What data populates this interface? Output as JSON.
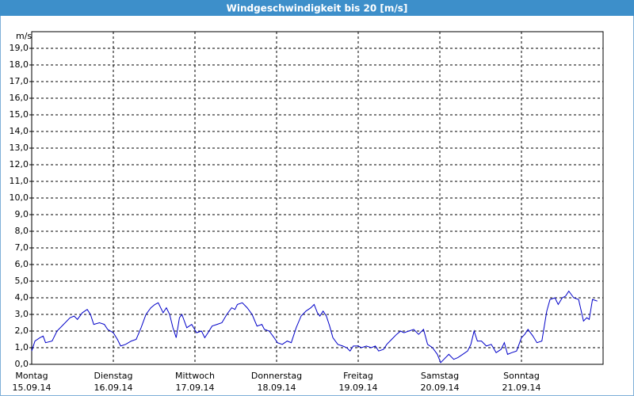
{
  "chart_data": {
    "type": "line",
    "title": "Windgeschwindigkeit bis 20 [m/s]",
    "y_label": "m/s",
    "xlim": [
      0,
      7
    ],
    "xticks": [
      {
        "value": 0,
        "label": "Montag",
        "date": "15.09.14"
      },
      {
        "value": 1,
        "label": "Dienstag",
        "date": "16.09.14"
      },
      {
        "value": 2,
        "label": "Mittwoch",
        "date": "17.09.14"
      },
      {
        "value": 3,
        "label": "Donnerstag",
        "date": "18.09.14"
      },
      {
        "value": 4,
        "label": "Freitag",
        "date": "19.09.14"
      },
      {
        "value": 5,
        "label": "Samstag",
        "date": "20.09.14"
      },
      {
        "value": 6,
        "label": "Sonntag",
        "date": "21.09.14"
      }
    ],
    "ylim": [
      0,
      20
    ],
    "yticks": [
      {
        "value": 0,
        "label": "0,0"
      },
      {
        "value": 1,
        "label": "1,0"
      },
      {
        "value": 2,
        "label": "2,0"
      },
      {
        "value": 3,
        "label": "3,0"
      },
      {
        "value": 4,
        "label": "4,0"
      },
      {
        "value": 5,
        "label": "5,0"
      },
      {
        "value": 6,
        "label": "6,0"
      },
      {
        "value": 7,
        "label": "7,0"
      },
      {
        "value": 8,
        "label": "8,0"
      },
      {
        "value": 9,
        "label": "9,0"
      },
      {
        "value": 10,
        "label": "10,0"
      },
      {
        "value": 11,
        "label": "11,0"
      },
      {
        "value": 12,
        "label": "12,0"
      },
      {
        "value": 13,
        "label": "13,0"
      },
      {
        "value": 14,
        "label": "14,0"
      },
      {
        "value": 15,
        "label": "15,0"
      },
      {
        "value": 16,
        "label": "16,0"
      },
      {
        "value": 17,
        "label": "17,0"
      },
      {
        "value": 18,
        "label": "18,0"
      },
      {
        "value": 19,
        "label": "19,0"
      }
    ],
    "grid": true,
    "x": [
      0,
      0.04,
      0.1,
      0.14,
      0.17,
      0.25,
      0.31,
      0.39,
      0.47,
      0.52,
      0.56,
      0.62,
      0.68,
      0.72,
      0.76,
      0.83,
      0.89,
      0.93,
      1.0,
      1.05,
      1.09,
      1.15,
      1.22,
      1.28,
      1.34,
      1.4,
      1.46,
      1.51,
      1.55,
      1.61,
      1.65,
      1.69,
      1.73,
      1.77,
      1.81,
      1.84,
      1.9,
      1.96,
      2.02,
      2.08,
      2.12,
      2.16,
      2.21,
      2.27,
      2.33,
      2.39,
      2.45,
      2.49,
      2.52,
      2.58,
      2.64,
      2.7,
      2.76,
      2.82,
      2.85,
      2.91,
      2.97,
      3.01,
      3.07,
      3.13,
      3.18,
      3.24,
      3.3,
      3.36,
      3.42,
      3.46,
      3.5,
      3.53,
      3.57,
      3.61,
      3.65,
      3.69,
      3.75,
      3.81,
      3.86,
      3.9,
      3.94,
      4.0,
      4.04,
      4.1,
      4.16,
      4.21,
      4.25,
      4.31,
      4.35,
      4.41,
      4.47,
      4.52,
      4.56,
      4.62,
      4.68,
      4.74,
      4.8,
      4.85,
      4.91,
      4.97,
      5.01,
      5.05,
      5.11,
      5.17,
      5.22,
      5.28,
      5.34,
      5.38,
      5.42,
      5.46,
      5.51,
      5.57,
      5.63,
      5.69,
      5.75,
      5.79,
      5.83,
      5.88,
      5.94,
      6.0,
      6.04,
      6.08,
      6.14,
      6.19,
      6.25,
      6.31,
      6.35,
      6.41,
      6.45,
      6.5,
      6.54,
      6.58,
      6.64,
      6.7,
      6.76,
      6.8,
      6.83,
      6.87,
      6.93
    ],
    "series": [
      {
        "name": "Windgeschwindigkeit",
        "color": "#0000c8",
        "values": [
          0.8,
          1.4,
          1.6,
          1.7,
          1.3,
          1.4,
          2.0,
          2.4,
          2.8,
          2.9,
          2.7,
          3.1,
          3.3,
          3.0,
          2.4,
          2.5,
          2.4,
          2.1,
          1.9,
          1.5,
          1.1,
          1.2,
          1.4,
          1.5,
          2.2,
          3.0,
          3.4,
          3.6,
          3.7,
          3.1,
          3.4,
          3.0,
          2.2,
          1.6,
          2.8,
          3.0,
          2.2,
          2.4,
          1.9,
          2.0,
          1.6,
          1.9,
          2.3,
          2.4,
          2.5,
          3.0,
          3.4,
          3.3,
          3.6,
          3.7,
          3.4,
          3.0,
          2.3,
          2.4,
          2.1,
          2.0,
          1.6,
          1.3,
          1.2,
          1.4,
          1.3,
          2.2,
          2.9,
          3.2,
          3.4,
          3.6,
          3.1,
          2.9,
          3.2,
          2.9,
          2.3,
          1.6,
          1.2,
          1.1,
          1.0,
          0.8,
          1.1,
          1.1,
          1.0,
          1.1,
          1.0,
          1.1,
          0.8,
          0.9,
          1.2,
          1.5,
          1.8,
          2.0,
          1.9,
          2.0,
          2.1,
          1.8,
          2.1,
          1.2,
          1.0,
          0.6,
          0.1,
          0.3,
          0.6,
          0.3,
          0.4,
          0.6,
          0.8,
          1.2,
          2.0,
          1.4,
          1.4,
          1.1,
          1.2,
          0.7,
          0.9,
          1.3,
          0.6,
          0.7,
          0.8,
          1.6,
          1.8,
          2.1,
          1.7,
          1.3,
          1.4,
          3.2,
          3.9,
          4.0,
          3.6,
          4.0,
          4.1,
          4.4,
          4.0,
          3.9,
          2.6,
          2.8,
          2.7,
          3.9,
          3.8
        ]
      }
    ]
  }
}
